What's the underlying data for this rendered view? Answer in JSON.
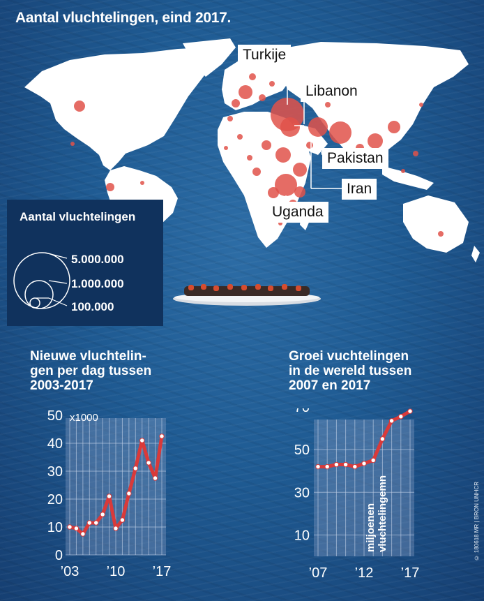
{
  "title": "Aantal vluchtelingen, eind 2017.",
  "map_labels": [
    "Turkije",
    "Libanon",
    "Pakistan",
    "Iran",
    "Uganda"
  ],
  "legend": {
    "title": "Aantal vluchtelingen",
    "sizes": [
      "5.000.000",
      "1.000.000",
      "100.000"
    ]
  },
  "colors": {
    "bubble": "#e0524a",
    "land": "#ffffff",
    "line": "#d93a3a",
    "legend_bg": "#10325d"
  },
  "chart_data": [
    {
      "type": "line",
      "title": "Nieuwe vluchtelingen per dag tussen 2003-2017",
      "title_lines": [
        "Nieuwe vluchtelin-",
        "gen per dag tussen",
        "2003-2017"
      ],
      "unit_label": "x1000",
      "x": [
        2003,
        2004,
        2005,
        2006,
        2007,
        2008,
        2009,
        2010,
        2011,
        2012,
        2013,
        2014,
        2015,
        2016,
        2017
      ],
      "y": [
        10,
        9.5,
        7.5,
        11.5,
        11.5,
        14.5,
        21,
        9.5,
        12.5,
        22,
        31,
        41,
        33,
        27.5,
        42.5
      ],
      "xticks": [
        "’03",
        "’10",
        "’17"
      ],
      "yticks": [
        "50",
        "40",
        "30",
        "20",
        "10",
        "0"
      ],
      "ylim": [
        0,
        50
      ]
    },
    {
      "type": "line",
      "title": "Groei vuchtelingen in de wereld tussen 2007 en 2017",
      "title_lines": [
        "Groei vuchtelingen",
        "in de wereld tussen",
        "2007 en 2017"
      ],
      "ylabel": "miljoenen vluchtelingemn",
      "ylabel_lines": [
        "miljoenen",
        "vluchtelingemn"
      ],
      "x": [
        2007,
        2008,
        2009,
        2010,
        2011,
        2012,
        2013,
        2014,
        2015,
        2016,
        2017
      ],
      "y": [
        42,
        42,
        43,
        43,
        42,
        43.5,
        45,
        55,
        63.5,
        65.5,
        68
      ],
      "xticks": [
        "’07",
        "’12",
        "’17"
      ],
      "yticks": [
        "70",
        "50",
        "30",
        "10"
      ],
      "ylim": [
        0,
        70
      ]
    }
  ],
  "credit": "© 180618 MR | BRON UNHCR"
}
